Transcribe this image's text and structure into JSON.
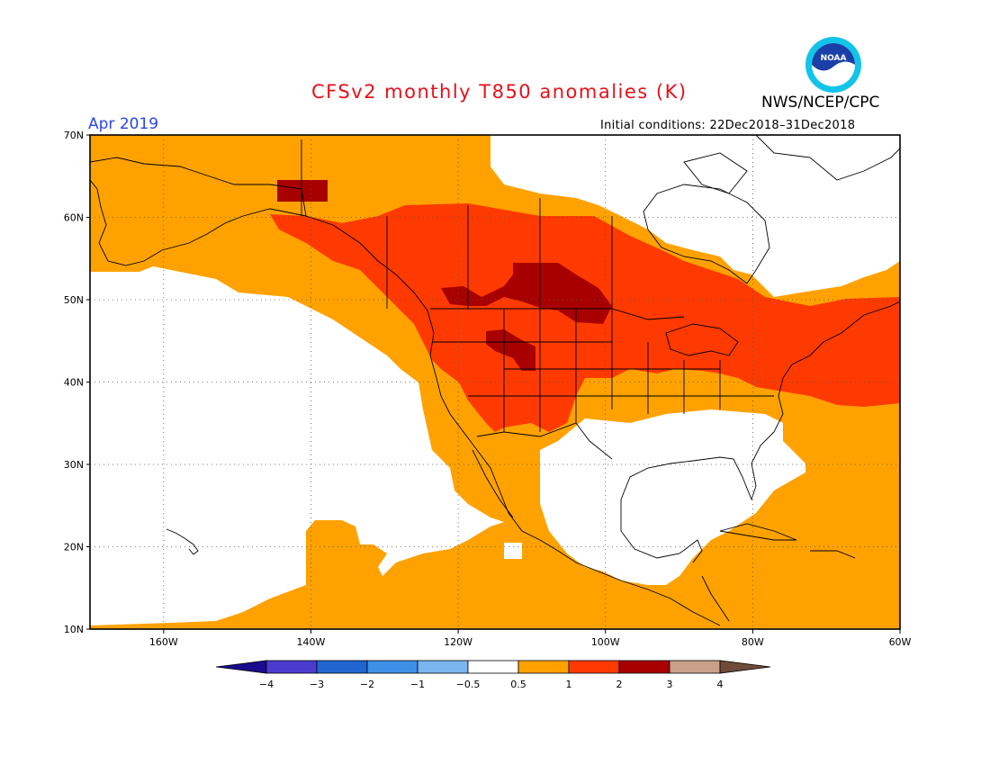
{
  "header": {
    "title": "CFSv2 monthly T850 anomalies (K)",
    "title_color": "#e8101a",
    "month": "Apr 2019",
    "month_color": "#2a44e8",
    "org": "NWS/NCEP/CPC",
    "initial_conditions": "Initial conditions: 22Dec2018–31Dec2018",
    "logo": "noaa-logo"
  },
  "map": {
    "projection": "lat-lon",
    "lon_range": [
      -170,
      -60
    ],
    "lat_range": [
      10,
      70
    ],
    "lat_labels": [
      "70N",
      "60N",
      "50N",
      "40N",
      "30N",
      "20N",
      "10N"
    ],
    "lon_labels": [
      "160W",
      "140W",
      "120W",
      "100W",
      "80W",
      "60W"
    ],
    "grid": "dotted"
  },
  "colorbar": {
    "ticks": [
      "−4",
      "−3",
      "−2",
      "−1",
      "−0.5",
      "0.5",
      "1",
      "2",
      "3",
      "4"
    ],
    "colors": [
      "#1a0c8c",
      "#4b3ccf",
      "#1f66d1",
      "#3e8fe8",
      "#7ab6f0",
      "#ffffff",
      "#ffa200",
      "#ff3a00",
      "#a80000",
      "#c9a08a",
      "#704a3a"
    ],
    "units": "K"
  },
  "legend_colors": {
    "c05_1": "#ffa200",
    "c1_2": "#ff3a00",
    "c2_3": "#a80000",
    "neutral": "#ffffff"
  }
}
